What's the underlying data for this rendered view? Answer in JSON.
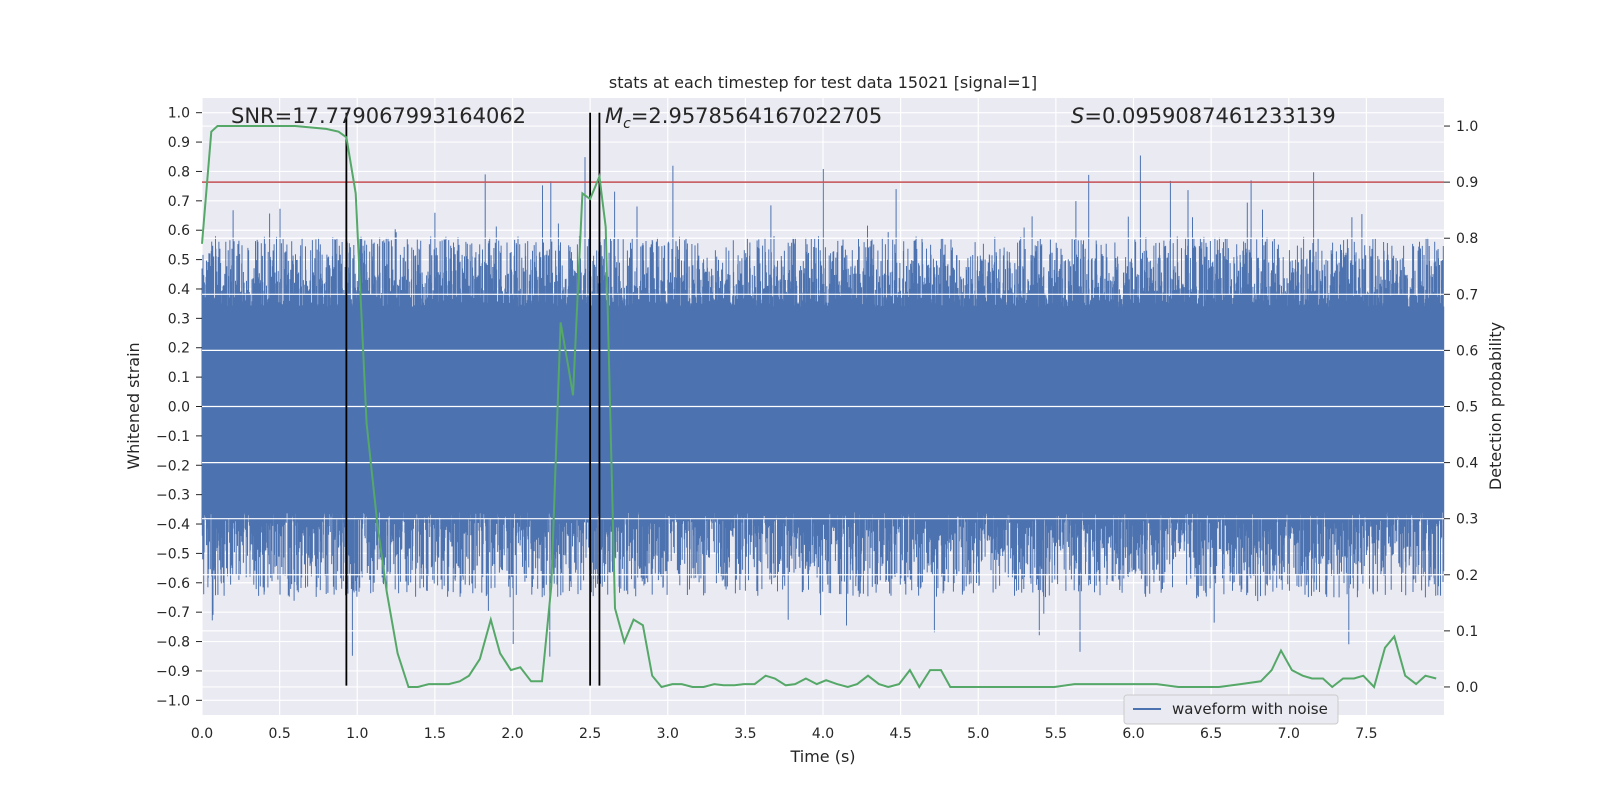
{
  "chart_data": {
    "type": "line",
    "title": "stats at each timestep for test data 15021 [signal=1]",
    "xlabel": "Time (s)",
    "ylabel": "Whitened strain",
    "y2label": "Detection probability",
    "xlim": [
      0,
      8
    ],
    "ylim": [
      -1.05,
      1.05
    ],
    "y2lim": [
      -0.05,
      1.05
    ],
    "x_ticks": [
      "0.0",
      "0.5",
      "1.0",
      "1.5",
      "2.0",
      "2.5",
      "3.0",
      "3.5",
      "4.0",
      "4.5",
      "5.0",
      "5.5",
      "6.0",
      "6.5",
      "7.0",
      "7.5"
    ],
    "y_ticks": [
      "1.0",
      "0.9",
      "0.8",
      "0.7",
      "0.6",
      "0.5",
      "0.4",
      "0.3",
      "0.2",
      "0.1",
      "0.0",
      "-0.1",
      "-0.2",
      "-0.3",
      "-0.4",
      "-0.5",
      "-0.6",
      "-0.7",
      "-0.8",
      "-0.9",
      "-1.0"
    ],
    "y2_ticks": [
      "1.0",
      "0.9",
      "0.8",
      "0.7",
      "0.6",
      "0.5",
      "0.4",
      "0.3",
      "0.2",
      "0.1",
      "0.0"
    ],
    "grid": true,
    "legend_position": "lower-right",
    "annotations": {
      "snr_text": "SNR=17.779067993164062",
      "mc_symbol": "M",
      "mc_subscript": "c",
      "mc_value": "=2.9578564167022705",
      "s_symbol": "S",
      "s_value": "=0.0959087461233139"
    },
    "threshold_line": {
      "y": 0.9,
      "color": "#c44e52"
    },
    "vertical_lines": [
      {
        "x": 0.93,
        "y_from": -0.95,
        "y_to": 1.0
      },
      {
        "x": 2.5,
        "y_from": -0.95,
        "y_to": 1.0
      },
      {
        "x": 2.56,
        "y_from": -0.95,
        "y_to": 1.0
      }
    ],
    "series": [
      {
        "name": "waveform with noise",
        "color": "#4c72b0",
        "axis": "left",
        "style": "dense-noise",
        "core_band": [
          -0.36,
          0.34
        ],
        "spike_range": [
          -0.65,
          0.58
        ]
      },
      {
        "color": "#55a868",
        "axis": "right",
        "x": [
          0.0,
          0.06,
          0.1,
          0.2,
          0.4,
          0.6,
          0.8,
          0.88,
          0.93,
          0.99,
          1.06,
          1.13,
          1.19,
          1.26,
          1.33,
          1.39,
          1.46,
          1.53,
          1.59,
          1.66,
          1.72,
          1.79,
          1.86,
          1.89,
          1.92,
          1.99,
          2.05,
          2.12,
          2.19,
          2.25,
          2.31,
          2.36,
          2.39,
          2.45,
          2.5,
          2.53,
          2.56,
          2.6,
          2.66,
          2.72,
          2.78,
          2.84,
          2.9,
          2.96,
          3.03,
          3.09,
          3.16,
          3.23,
          3.3,
          3.36,
          3.43,
          3.49,
          3.56,
          3.63,
          3.69,
          3.76,
          3.82,
          3.89,
          3.96,
          4.02,
          4.09,
          4.16,
          4.22,
          4.29,
          4.36,
          4.42,
          4.49,
          4.56,
          4.62,
          4.69,
          4.76,
          4.82,
          4.89,
          4.96,
          5.02,
          5.09,
          5.22,
          5.35,
          5.49,
          5.62,
          5.76,
          5.89,
          6.02,
          6.15,
          6.29,
          6.42,
          6.55,
          6.69,
          6.82,
          6.89,
          6.95,
          7.02,
          7.09,
          7.15,
          7.22,
          7.28,
          7.35,
          7.42,
          7.48,
          7.55,
          7.62,
          7.68,
          7.75,
          7.82,
          7.88,
          7.95
        ],
        "y": [
          0.79,
          0.99,
          1.0,
          1.0,
          1.0,
          1.0,
          0.995,
          0.99,
          0.98,
          0.88,
          0.47,
          0.29,
          0.17,
          0.06,
          0.0,
          0.0,
          0.005,
          0.005,
          0.005,
          0.01,
          0.02,
          0.05,
          0.12,
          0.09,
          0.06,
          0.03,
          0.035,
          0.01,
          0.01,
          0.18,
          0.65,
          0.57,
          0.52,
          0.88,
          0.87,
          0.89,
          0.91,
          0.82,
          0.14,
          0.08,
          0.12,
          0.11,
          0.02,
          0.0,
          0.005,
          0.005,
          0.0,
          0.0,
          0.005,
          0.003,
          0.003,
          0.005,
          0.005,
          0.02,
          0.015,
          0.003,
          0.005,
          0.015,
          0.005,
          0.012,
          0.005,
          0.0,
          0.005,
          0.02,
          0.005,
          0.0,
          0.005,
          0.03,
          0.0,
          0.03,
          0.03,
          0.0,
          0.0,
          0.0,
          0.0,
          0.0,
          0.0,
          0.0,
          0.0,
          0.005,
          0.005,
          0.005,
          0.005,
          0.005,
          0.0,
          0.0,
          0.0,
          0.005,
          0.01,
          0.03,
          0.065,
          0.03,
          0.02,
          0.015,
          0.015,
          0.0,
          0.015,
          0.015,
          0.02,
          0.0,
          0.07,
          0.09,
          0.02,
          0.005,
          0.02,
          0.015
        ]
      }
    ]
  }
}
